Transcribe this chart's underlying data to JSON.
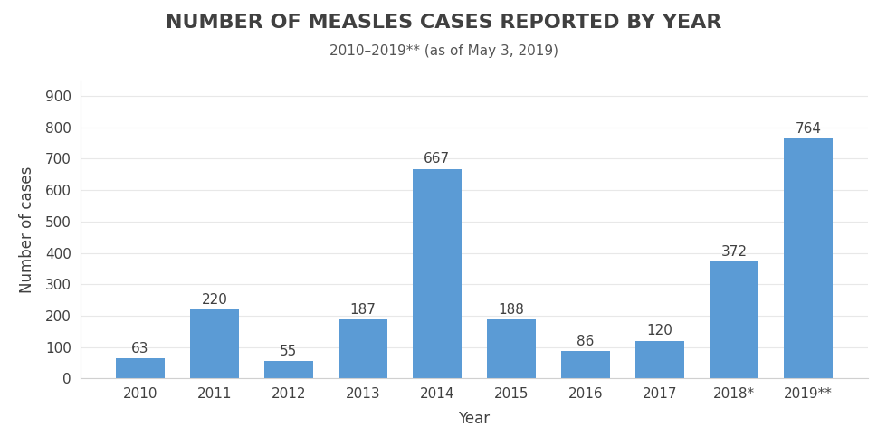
{
  "title": "NUMBER OF MEASLES CASES REPORTED BY YEAR",
  "subtitle": "2010–2019** (as of May 3, 2019)",
  "xlabel": "Year",
  "ylabel": "Number of cases",
  "categories": [
    "2010",
    "2011",
    "2012",
    "2013",
    "2014",
    "2015",
    "2016",
    "2017",
    "2018*",
    "2019**"
  ],
  "values": [
    63,
    220,
    55,
    187,
    667,
    188,
    86,
    120,
    372,
    764
  ],
  "bar_color": "#5b9bd5",
  "ylim": [
    0,
    950
  ],
  "yticks": [
    0,
    100,
    200,
    300,
    400,
    500,
    600,
    700,
    800,
    900
  ],
  "title_fontsize": 16,
  "subtitle_fontsize": 11,
  "label_fontsize": 12,
  "tick_fontsize": 11,
  "value_label_fontsize": 11,
  "background_color": "#ffffff",
  "title_color": "#404040",
  "subtitle_color": "#555555",
  "axis_label_color": "#404040",
  "tick_color": "#404040",
  "value_label_color": "#404040"
}
